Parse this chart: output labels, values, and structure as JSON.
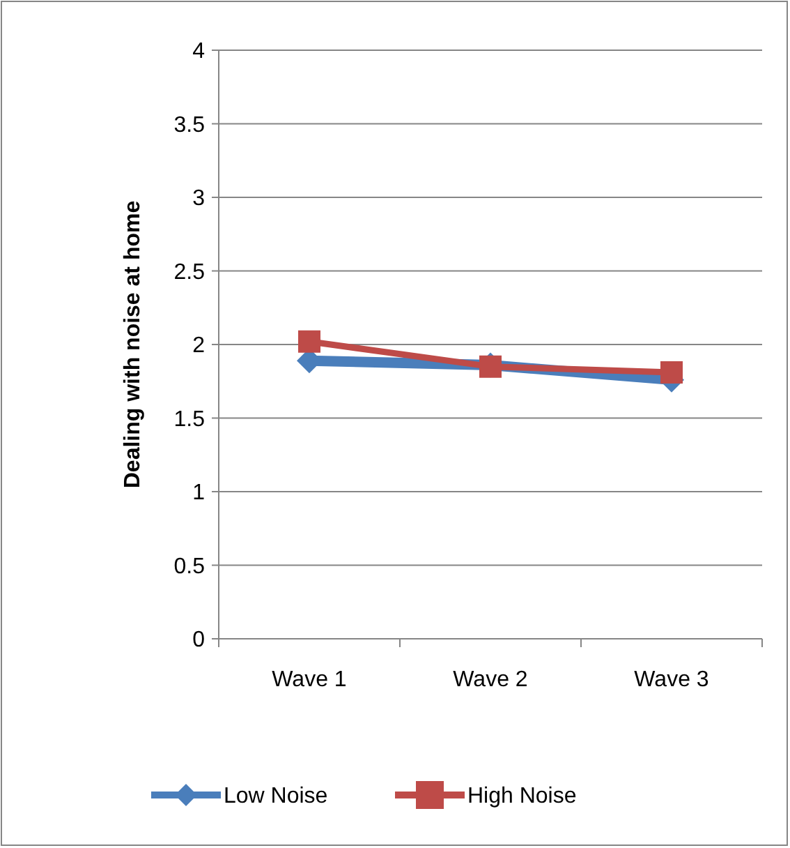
{
  "chart_data": {
    "type": "line",
    "ylabel": "Dealing with noise at home",
    "categories": [
      "Wave 1",
      "Wave 2",
      "Wave 3"
    ],
    "series": [
      {
        "name": "Low Noise",
        "color": "#4a7ebb",
        "values": [
          1.89,
          1.86,
          1.76
        ],
        "marker": "diamond"
      },
      {
        "name": "High Noise",
        "color": "#be4b48",
        "values": [
          2.02,
          1.85,
          1.81
        ],
        "marker": "square"
      }
    ],
    "ylim": [
      0,
      4
    ],
    "yticks": [
      0,
      0.5,
      1,
      1.5,
      2,
      2.5,
      3,
      3.5,
      4
    ],
    "grid": "y",
    "legend": "bottom"
  }
}
